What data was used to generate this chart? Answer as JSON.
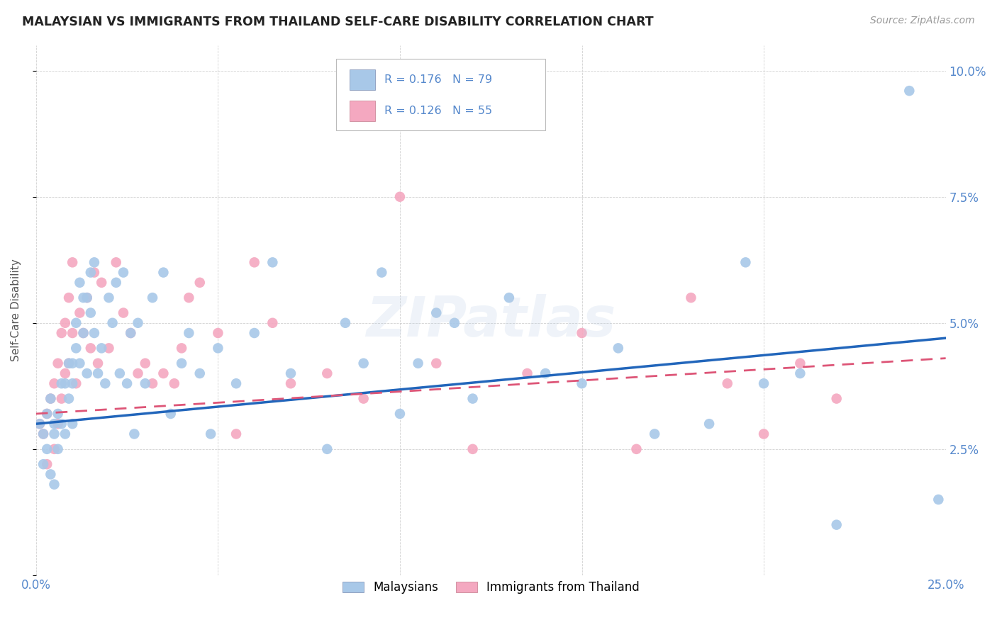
{
  "title": "MALAYSIAN VS IMMIGRANTS FROM THAILAND SELF-CARE DISABILITY CORRELATION CHART",
  "source": "Source: ZipAtlas.com",
  "ylabel": "Self-Care Disability",
  "xlim": [
    0.0,
    0.25
  ],
  "ylim": [
    0.0,
    0.105
  ],
  "xticks": [
    0.0,
    0.05,
    0.1,
    0.15,
    0.2,
    0.25
  ],
  "xticklabels": [
    "0.0%",
    "",
    "",
    "",
    "",
    "25.0%"
  ],
  "yticks": [
    0.0,
    0.025,
    0.05,
    0.075,
    0.1
  ],
  "yticklabels": [
    "",
    "2.5%",
    "5.0%",
    "7.5%",
    "10.0%"
  ],
  "legend_label1": "Malaysians",
  "legend_label2": "Immigrants from Thailand",
  "R1": "0.176",
  "N1": "79",
  "R2": "0.126",
  "N2": "55",
  "color1": "#a8c8e8",
  "color2": "#f4a8c0",
  "line_color1": "#2266bb",
  "line_color2": "#dd5577",
  "background_color": "#ffffff",
  "grid_color": "#cccccc",
  "title_color": "#222222",
  "axis_label_color": "#5588cc",
  "watermark": "ZIPatlas",
  "malaysians_x": [
    0.001,
    0.002,
    0.002,
    0.003,
    0.003,
    0.004,
    0.004,
    0.005,
    0.005,
    0.005,
    0.006,
    0.006,
    0.007,
    0.007,
    0.008,
    0.008,
    0.009,
    0.009,
    0.01,
    0.01,
    0.01,
    0.011,
    0.011,
    0.012,
    0.012,
    0.013,
    0.013,
    0.014,
    0.014,
    0.015,
    0.015,
    0.016,
    0.016,
    0.017,
    0.018,
    0.019,
    0.02,
    0.021,
    0.022,
    0.023,
    0.024,
    0.025,
    0.026,
    0.027,
    0.028,
    0.03,
    0.032,
    0.035,
    0.037,
    0.04,
    0.042,
    0.045,
    0.048,
    0.05,
    0.055,
    0.06,
    0.065,
    0.07,
    0.08,
    0.085,
    0.09,
    0.095,
    0.1,
    0.105,
    0.11,
    0.115,
    0.12,
    0.13,
    0.14,
    0.15,
    0.16,
    0.17,
    0.185,
    0.195,
    0.2,
    0.21,
    0.22,
    0.24,
    0.248
  ],
  "malaysians_y": [
    0.03,
    0.028,
    0.022,
    0.032,
    0.025,
    0.035,
    0.02,
    0.028,
    0.018,
    0.03,
    0.032,
    0.025,
    0.038,
    0.03,
    0.038,
    0.028,
    0.035,
    0.042,
    0.03,
    0.042,
    0.038,
    0.05,
    0.045,
    0.042,
    0.058,
    0.048,
    0.055,
    0.055,
    0.04,
    0.052,
    0.06,
    0.048,
    0.062,
    0.04,
    0.045,
    0.038,
    0.055,
    0.05,
    0.058,
    0.04,
    0.06,
    0.038,
    0.048,
    0.028,
    0.05,
    0.038,
    0.055,
    0.06,
    0.032,
    0.042,
    0.048,
    0.04,
    0.028,
    0.045,
    0.038,
    0.048,
    0.062,
    0.04,
    0.025,
    0.05,
    0.042,
    0.06,
    0.032,
    0.042,
    0.052,
    0.05,
    0.035,
    0.055,
    0.04,
    0.038,
    0.045,
    0.028,
    0.03,
    0.062,
    0.038,
    0.04,
    0.01,
    0.096,
    0.015
  ],
  "thailand_x": [
    0.001,
    0.002,
    0.003,
    0.003,
    0.004,
    0.005,
    0.005,
    0.006,
    0.006,
    0.007,
    0.007,
    0.008,
    0.008,
    0.009,
    0.009,
    0.01,
    0.01,
    0.011,
    0.012,
    0.013,
    0.014,
    0.015,
    0.016,
    0.017,
    0.018,
    0.02,
    0.022,
    0.024,
    0.026,
    0.028,
    0.03,
    0.032,
    0.035,
    0.038,
    0.04,
    0.042,
    0.045,
    0.05,
    0.055,
    0.06,
    0.065,
    0.07,
    0.08,
    0.09,
    0.1,
    0.11,
    0.12,
    0.135,
    0.15,
    0.165,
    0.18,
    0.19,
    0.2,
    0.21,
    0.22
  ],
  "thailand_y": [
    0.03,
    0.028,
    0.032,
    0.022,
    0.035,
    0.038,
    0.025,
    0.042,
    0.03,
    0.048,
    0.035,
    0.05,
    0.04,
    0.042,
    0.055,
    0.048,
    0.062,
    0.038,
    0.052,
    0.048,
    0.055,
    0.045,
    0.06,
    0.042,
    0.058,
    0.045,
    0.062,
    0.052,
    0.048,
    0.04,
    0.042,
    0.038,
    0.04,
    0.038,
    0.045,
    0.055,
    0.058,
    0.048,
    0.028,
    0.062,
    0.05,
    0.038,
    0.04,
    0.035,
    0.075,
    0.042,
    0.025,
    0.04,
    0.048,
    0.025,
    0.055,
    0.038,
    0.028,
    0.042,
    0.035
  ]
}
